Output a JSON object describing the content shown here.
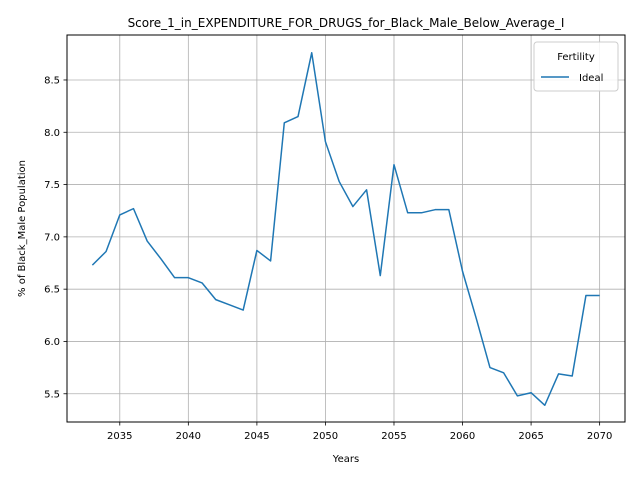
{
  "chart_data": {
    "type": "line",
    "title": "Score_1_in_EXPENDITURE_FOR_DRUGS_for_Black_Male_Below_Average_I",
    "xlabel": "Years",
    "ylabel": "% of Black_Male Population",
    "x_ticks": [
      2035,
      2040,
      2045,
      2050,
      2055,
      2060,
      2065,
      2070
    ],
    "y_ticks": [
      "5.5",
      "6.0",
      "6.5",
      "7.0",
      "7.5",
      "8.0",
      "8.5"
    ],
    "xlim": [
      2031.15,
      2071.85
    ],
    "ylim": [
      5.23,
      8.93
    ],
    "grid": true,
    "legend": {
      "title": "Fertility",
      "position": "top-right"
    },
    "series": [
      {
        "name": "Ideal",
        "color": "#1f77b4",
        "x": [
          2033,
          2034,
          2035,
          2036,
          2037,
          2038,
          2039,
          2040,
          2041,
          2042,
          2043,
          2044,
          2045,
          2046,
          2047,
          2048,
          2049,
          2050,
          2051,
          2052,
          2053,
          2054,
          2055,
          2056,
          2057,
          2058,
          2059,
          2060,
          2061,
          2062,
          2063,
          2064,
          2065,
          2066,
          2067,
          2068,
          2069,
          2070
        ],
        "y": [
          6.73,
          6.86,
          7.21,
          7.27,
          6.96,
          6.79,
          6.61,
          6.61,
          6.56,
          6.4,
          6.35,
          6.3,
          6.87,
          6.77,
          8.09,
          8.15,
          8.76,
          7.91,
          7.53,
          7.29,
          7.45,
          6.63,
          7.69,
          7.23,
          7.23,
          7.26,
          7.26,
          6.67,
          6.22,
          5.75,
          5.7,
          5.48,
          5.51,
          5.39,
          5.69,
          5.67,
          6.44,
          6.44
        ]
      }
    ]
  }
}
